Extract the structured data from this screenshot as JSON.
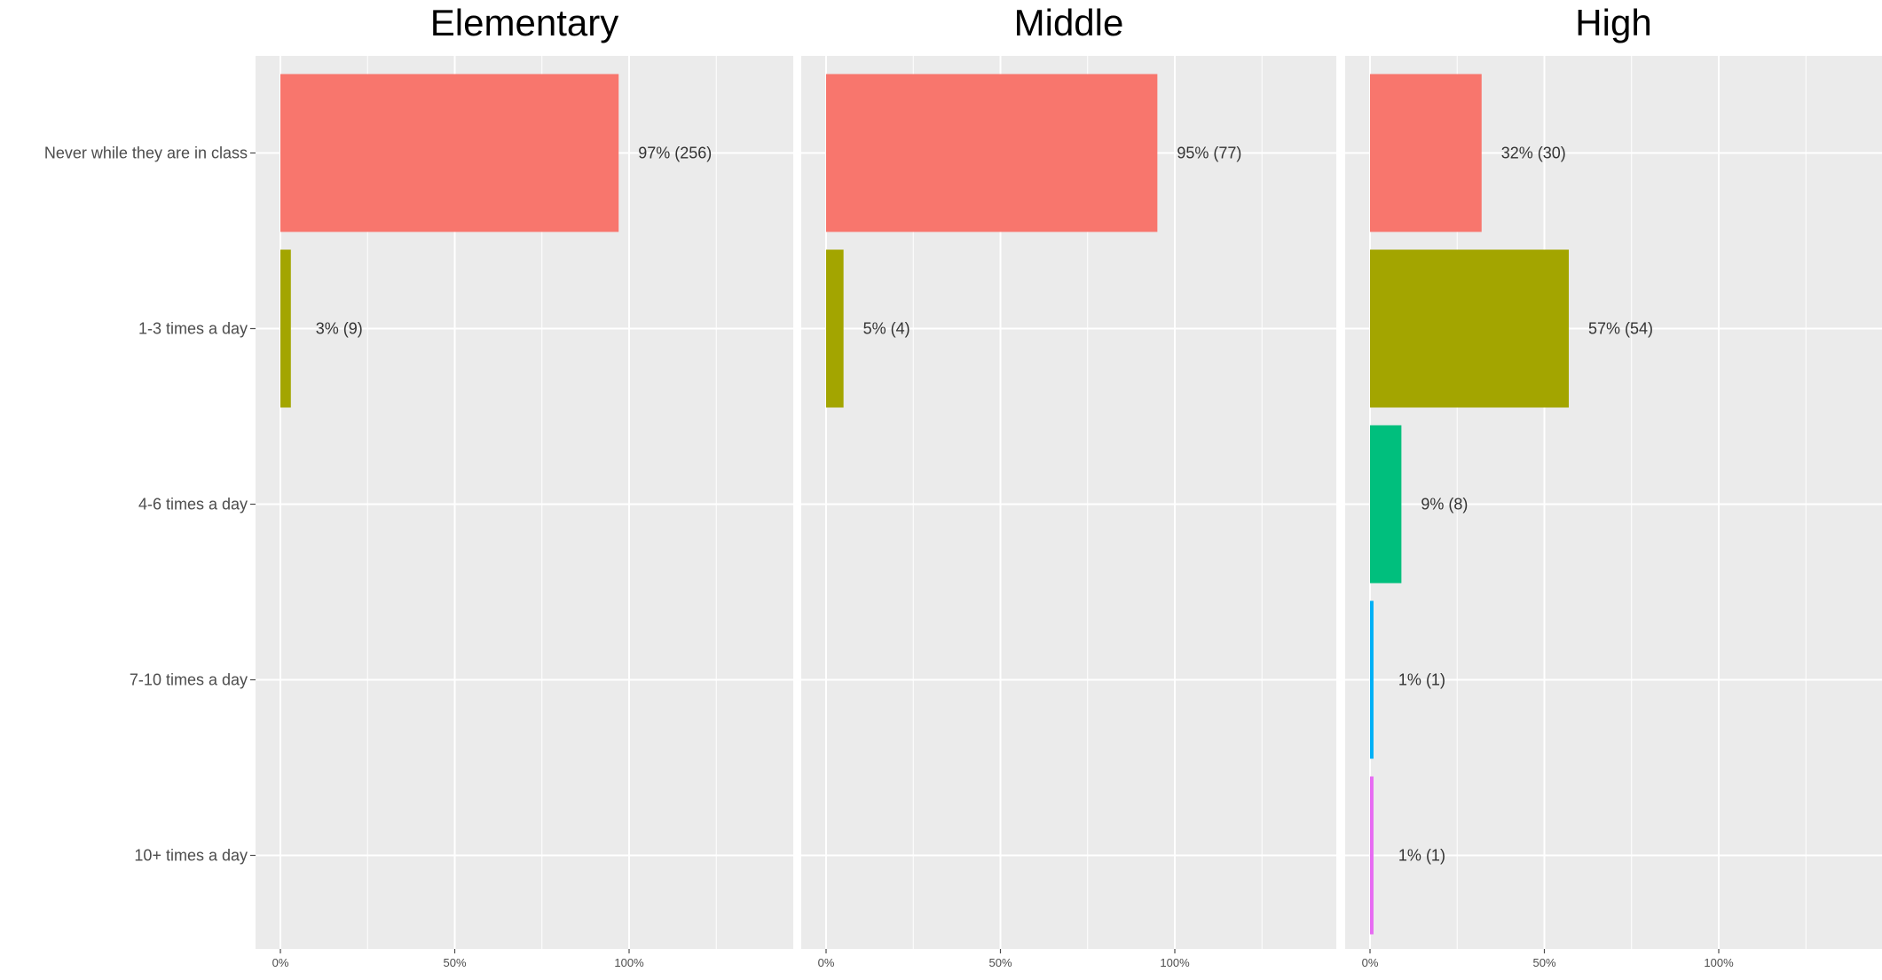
{
  "chart_data": {
    "type": "bar",
    "orientation": "horizontal",
    "categories": [
      "Never while they are in class",
      "1-3 times a day",
      "4-6 times a day",
      "7-10 times a day",
      "10+ times a day"
    ],
    "category_colors": [
      "#F8766D",
      "#A3A500",
      "#00BF7D",
      "#00B0F6",
      "#E76BF3"
    ],
    "x_ticks": [
      "0%",
      "50%",
      "100%"
    ],
    "xlim": [
      0,
      1.45
    ],
    "grid": true,
    "panel_background": "#EBEBEB",
    "facets": [
      {
        "title": "Elementary",
        "values": [
          0.97,
          0.03,
          0,
          0,
          0
        ],
        "labels": [
          "97% (256)",
          "3% (9)",
          "",
          "",
          ""
        ]
      },
      {
        "title": "Middle",
        "values": [
          0.95,
          0.05,
          0,
          0,
          0
        ],
        "labels": [
          "95% (77)",
          "5% (4)",
          "",
          "",
          ""
        ]
      },
      {
        "title": "High",
        "values": [
          0.32,
          0.57,
          0.09,
          0.01,
          0.01
        ],
        "labels": [
          "32% (30)",
          "57% (54)",
          "9% (8)",
          "1% (1)",
          "1% (1)"
        ]
      }
    ]
  }
}
